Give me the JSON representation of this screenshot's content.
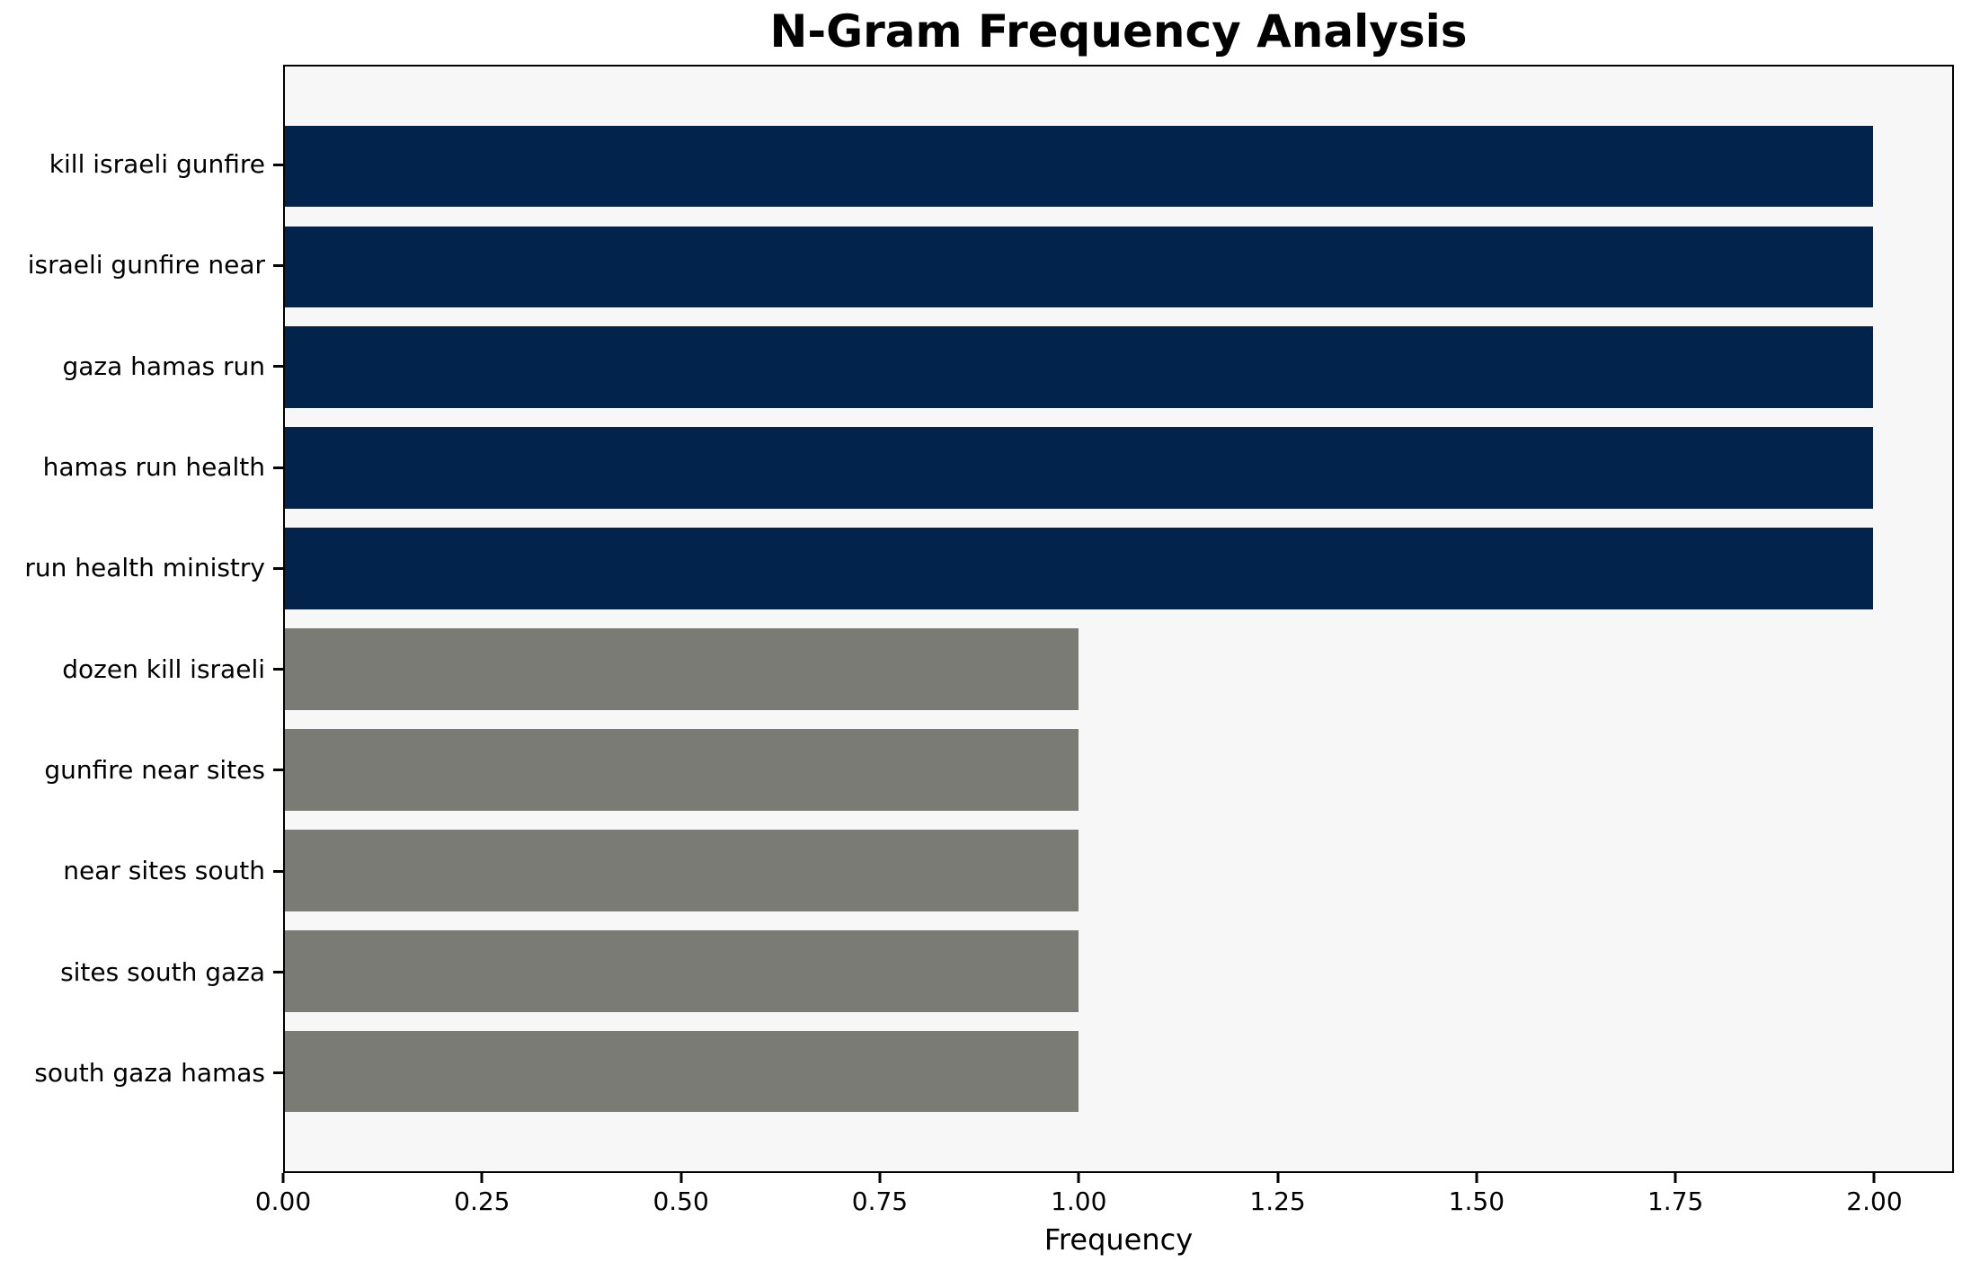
{
  "chart_data": {
    "type": "bar",
    "orientation": "horizontal",
    "title": "N-Gram Frequency Analysis",
    "xlabel": "Frequency",
    "categories": [
      "kill israeli gunfire",
      "israeli gunfire near",
      "gaza hamas run",
      "hamas run health",
      "run health ministry",
      "dozen kill israeli",
      "gunfire near sites",
      "near sites south",
      "sites south gaza",
      "south gaza hamas"
    ],
    "values": [
      2,
      2,
      2,
      2,
      2,
      1,
      1,
      1,
      1,
      1
    ],
    "bar_colors": [
      "#02234c",
      "#02234c",
      "#02234c",
      "#02234c",
      "#02234c",
      "#7b7b76",
      "#7b7b76",
      "#7b7b76",
      "#7b7b76",
      "#7b7b76"
    ],
    "xlim": [
      0,
      2.1
    ],
    "xticks": [
      0,
      0.25,
      0.5,
      0.75,
      1.0,
      1.25,
      1.5,
      1.75,
      2.0
    ],
    "xtick_labels": [
      "0.00",
      "0.25",
      "0.50",
      "0.75",
      "1.00",
      "1.25",
      "1.50",
      "1.75",
      "2.00"
    ],
    "bar_height_fraction": 0.8,
    "grid": false,
    "legend": null,
    "colors": {
      "plot_background": "#f7f7f7",
      "figure_background": "#ffffff",
      "spine": "#000000",
      "text": "#000000"
    }
  }
}
